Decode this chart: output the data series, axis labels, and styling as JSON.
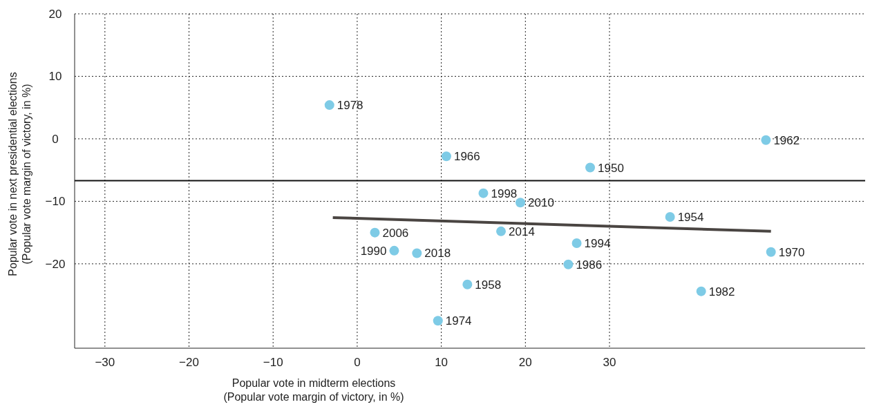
{
  "chart_data": {
    "type": "scatter",
    "xlabel": "Popular vote in midterm elections\n(Popular vote margin of victory, in %)",
    "ylabel": "Popular vote in next presidential elections\n(Popular vote margin of victory, in %)",
    "xlim": [
      -33.6,
      60.4
    ],
    "xticks": [
      -30,
      -20,
      -10,
      0,
      10,
      20,
      30
    ],
    "ylim": [
      -33.5,
      20
    ],
    "yticks": [
      -20,
      -10,
      0,
      10,
      20
    ],
    "grid": true,
    "series": [
      {
        "color": "#7ecbe6",
        "marker": "circle",
        "x": [
          -3.3,
          10.6,
          48.6,
          27.7,
          15.0,
          19.4,
          37.2,
          2.1,
          17.1,
          26.1,
          4.4,
          7.1,
          49.2,
          25.1,
          13.1,
          40.9,
          9.6
        ],
        "values": [
          5.4,
          -2.8,
          -0.2,
          -4.6,
          -8.7,
          -10.2,
          -12.5,
          -15.0,
          -14.8,
          -16.7,
          -17.9,
          -18.3,
          -18.1,
          -20.1,
          -23.3,
          -24.4,
          -29.1
        ]
      },
      {
        "type": "line",
        "color": "#4a4542",
        "x": [
          -2.9,
          49.2
        ],
        "values": [
          -12.6,
          -14.8
        ]
      }
    ],
    "ref_lines": [
      {
        "axis": "y",
        "value": -6.7,
        "color": "#111111",
        "line_style": "solid"
      }
    ],
    "annotations": [
      {
        "text": "1978",
        "x": -3.3,
        "y": 5.4
      },
      {
        "text": "1966",
        "x": 10.6,
        "y": -2.8
      },
      {
        "text": "1962",
        "x": 48.6,
        "y": -0.2
      },
      {
        "text": "1950",
        "x": 27.7,
        "y": -4.6
      },
      {
        "text": "1998",
        "x": 15.0,
        "y": -8.7
      },
      {
        "text": "2010",
        "x": 19.4,
        "y": -10.2
      },
      {
        "text": "1954",
        "x": 37.2,
        "y": -12.5
      },
      {
        "text": "2006",
        "x": 2.1,
        "y": -15.0
      },
      {
        "text": "2014",
        "x": 17.1,
        "y": -14.8
      },
      {
        "text": "1994",
        "x": 26.1,
        "y": -16.7
      },
      {
        "text": "1990",
        "x": 4.4,
        "y": -17.9
      },
      {
        "text": "2018",
        "x": 7.1,
        "y": -18.3
      },
      {
        "text": "1970",
        "x": 49.2,
        "y": -18.1
      },
      {
        "text": "1986",
        "x": 25.1,
        "y": -20.1
      },
      {
        "text": "1958",
        "x": 13.1,
        "y": -23.3
      },
      {
        "text": "1982",
        "x": 40.9,
        "y": -24.4
      },
      {
        "text": "1974",
        "x": 9.6,
        "y": -29.1
      }
    ]
  }
}
